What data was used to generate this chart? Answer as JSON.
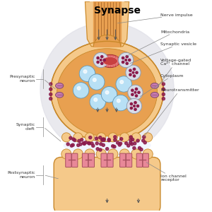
{
  "title": "Synapse",
  "title_fontsize": 10,
  "title_fontweight": "bold",
  "bg_color": "#ffffff",
  "labels": {
    "nerve_impulse": "Nerve impulse",
    "mitochondria": "Mitochondria",
    "synaptic_vesicle": "Synaptic vesicle",
    "voltage_gated": "Voltage-gated\nCa²⁺ channel",
    "cytoplasm": "Cytoplasm",
    "neurotransmitter": "Neurotransmitter",
    "presynaptic": "Presynaptic\nneuron",
    "synaptic_cleft": "Synaptic\ncleft",
    "postsynaptic": "Postsynaptic\nneuron",
    "ion_channel": "Ion channel\nreceptor"
  },
  "colors": {
    "axon_fill": "#f5c98a",
    "axon_stroke": "#c8882a",
    "terminal_fill": "#f5c98a",
    "terminal_stroke": "#c8882a",
    "postsynaptic_fill": "#f5c98a",
    "postsynaptic_stroke": "#c8882a",
    "mito_fill": "#e06060",
    "mito_stroke": "#a03030",
    "vesicle_blue_fill": "#b8e0f5",
    "vesicle_blue_stroke": "#6098b8",
    "vesicle_gray_fill": "#d8dde8",
    "vesicle_gray_stroke": "#8898b0",
    "voltage_channel_fill": "#c87ab0",
    "voltage_channel_stroke": "#804870",
    "ion_receptor_fill": "#e88898",
    "ion_receptor_stroke": "#a85060",
    "neurotrans_dot": "#8b1a4a",
    "cleft_bg": "#f0f4ff",
    "gray_bg_circle": "#e0e0e8",
    "inner_orange": "#e8a050",
    "arrow_color": "#555555",
    "label_color": "#333333",
    "line_color": "#888888",
    "axon_lines": "#7a3a0a"
  }
}
